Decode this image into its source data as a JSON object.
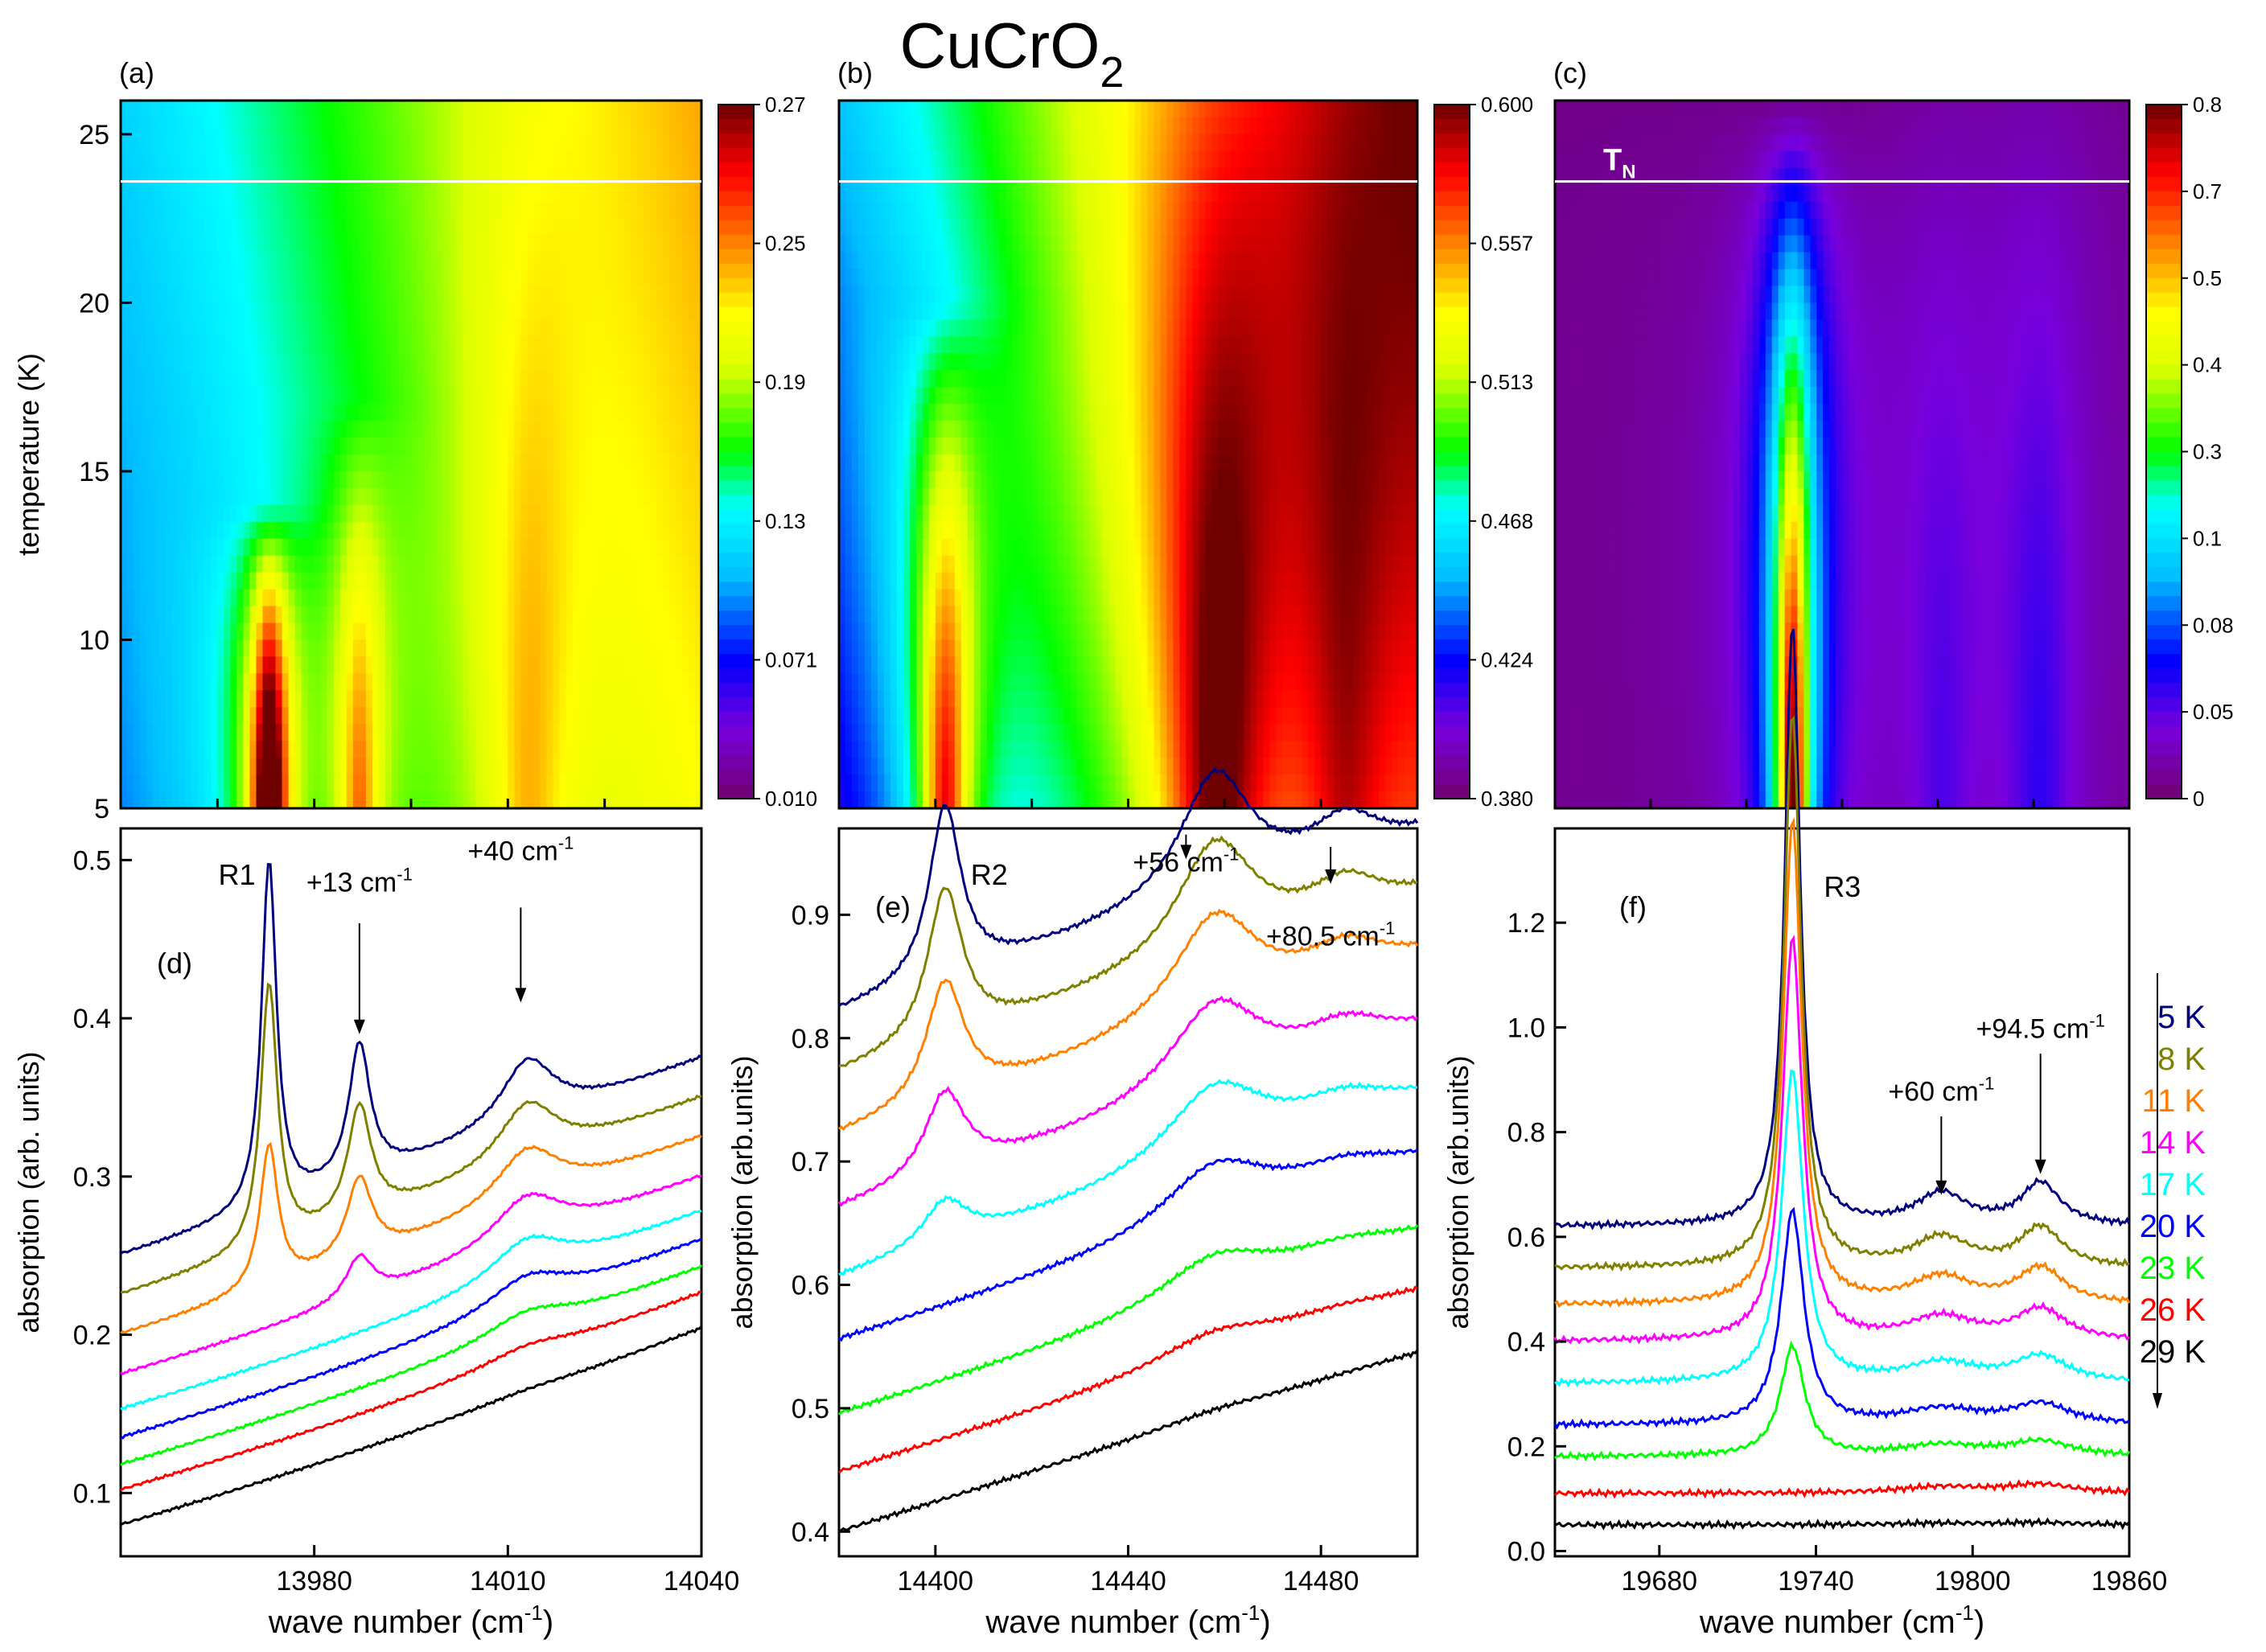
{
  "title": {
    "main": "CuCrO",
    "sub": "2"
  },
  "heatmaps": [
    {
      "panel": "(a)",
      "x_range": [
        13950,
        14040
      ],
      "y_range": [
        5,
        26
      ],
      "ylabel": "temperature (K)",
      "y_ticks": [
        "5",
        "10",
        "15",
        "20",
        "25"
      ],
      "colorbar_ticks": [
        "0.010",
        "0.071",
        "0.13",
        "0.19",
        "0.25",
        "0.27"
      ],
      "colorbar_range": [
        0.01,
        0.27
      ],
      "tn_temperature": 23.6,
      "peaks": [
        {
          "x": 13973,
          "width": 2.5,
          "amp": 0.22,
          "tmax": 14
        },
        {
          "x": 13987,
          "width": 3.0,
          "amp": 0.09,
          "tmax": 17
        },
        {
          "x": 14013,
          "width": 6.0,
          "amp": 0.05,
          "tmax": 30
        }
      ],
      "background": {
        "base": 0.08,
        "slope": 0.0012,
        "t_slope": 0.001
      }
    },
    {
      "panel": "(b)",
      "x_range": [
        14380,
        14500
      ],
      "y_range": [
        5,
        26
      ],
      "y_ticks": [],
      "colorbar_ticks": [
        "0.380",
        "0.424",
        "0.468",
        "0.513",
        "0.557",
        "0.600"
      ],
      "colorbar_range": [
        0.38,
        0.6
      ],
      "tn_temperature": 23.6,
      "peaks": [
        {
          "x": 14402,
          "width": 5.0,
          "amp": 0.14,
          "tmax": 20
        },
        {
          "x": 14458,
          "width": 10.0,
          "amp": 0.1,
          "tmax": 30
        },
        {
          "x": 14485,
          "width": 8.0,
          "amp": 0.04,
          "tmax": 30
        }
      ],
      "background": {
        "base": 0.41,
        "slope": 0.0012,
        "t_slope": 0.002
      }
    },
    {
      "panel": "(c)",
      "x_range": [
        19640,
        19860
      ],
      "y_range": [
        5,
        26
      ],
      "y_ticks": [],
      "colorbar_ticks": [
        "0",
        "0.05",
        "0.08",
        "0.1",
        "0.3",
        "0.4",
        "0.5",
        "0.7",
        "0.8"
      ],
      "colorbar_range": [
        0,
        0.8
      ],
      "tn_temperature": 23.6,
      "tn_label": "T",
      "tn_sub": "N",
      "peaks": [
        {
          "x": 19731,
          "width": 6.0,
          "amp": 0.8,
          "tmax": 26
        },
        {
          "x": 19788,
          "width": 12.0,
          "amp": 0.07,
          "tmax": 30
        },
        {
          "x": 19826,
          "width": 12.0,
          "amp": 0.1,
          "tmax": 30
        }
      ],
      "background": {
        "base": 0.02,
        "slope": 0.0,
        "t_slope": 0.0
      }
    }
  ],
  "spectra": [
    {
      "panel": "(d)",
      "line_label": "R1",
      "x_range": [
        13950,
        14040
      ],
      "y_range": [
        0.06,
        0.52
      ],
      "ylabel": "absorption (arb. units)",
      "xlabel": "wave number (cm",
      "xlabel_sup": "-1",
      "xlabel_end": ")",
      "x_ticks": [
        "13980",
        "14010",
        "14040"
      ],
      "y_ticks": [
        "0.1",
        "0.2",
        "0.3",
        "0.4",
        "0.5"
      ],
      "annotations": [
        {
          "text": "+13 cm",
          "sup": "-1",
          "x": 13987,
          "y": 0.48,
          "arrow_from": 0.46,
          "arrow_to": 0.39
        },
        {
          "text": "+40 cm",
          "sup": "-1",
          "x": 14012,
          "y": 0.5,
          "arrow_from": 0.47,
          "arrow_to": 0.41
        }
      ],
      "peaks": [
        {
          "x": 13973,
          "width": 1.4,
          "amp": 0.22,
          "tmax": 14
        },
        {
          "x": 13987,
          "width": 2.0,
          "amp": 0.085,
          "tmax": 17
        },
        {
          "x": 14013,
          "width": 5.0,
          "amp": 0.04,
          "tmax": 30
        }
      ],
      "background": {
        "base": 0.08,
        "slope": 0.0012,
        "curv": 2e-06,
        "noise": 0.001
      },
      "offsets": [
        0.17,
        0.145,
        0.12,
        0.095,
        0.073,
        0.055,
        0.038,
        0.022,
        0.0
      ]
    },
    {
      "panel": "(e)",
      "line_label": "R2",
      "x_range": [
        14380,
        14500
      ],
      "y_range": [
        0.38,
        0.97
      ],
      "ylabel": "absorption (arb.units)",
      "xlabel": "wave number (cm",
      "xlabel_sup": "-1",
      "xlabel_end": ")",
      "x_ticks": [
        "14400",
        "14440",
        "14480"
      ],
      "y_ticks": [
        "0.4",
        "0.5",
        "0.6",
        "0.7",
        "0.8",
        "0.9"
      ],
      "annotations": [
        {
          "text": "+56 cm",
          "sup": "-1",
          "x": 14452,
          "y": 0.935,
          "arrow_from": 0.965,
          "arrow_to": 0.945
        },
        {
          "text": "+80.5 cm",
          "sup": "-1",
          "x": 14482,
          "y": 0.875,
          "arrow_from": 0.955,
          "arrow_to": 0.925
        }
      ],
      "peaks": [
        {
          "x": 14402,
          "width": 4.0,
          "amp": 0.14,
          "tmax": 20
        },
        {
          "x": 14458,
          "width": 9.0,
          "amp": 0.1,
          "tmax": 30
        },
        {
          "x": 14485,
          "width": 8.0,
          "amp": 0.03,
          "tmax": 30
        }
      ],
      "background": {
        "base": 0.4,
        "slope": 0.0012,
        "curv": 0.0,
        "noise": 0.002
      },
      "offsets": [
        0.42,
        0.37,
        0.32,
        0.26,
        0.205,
        0.155,
        0.095,
        0.048,
        0.0
      ]
    },
    {
      "panel": "(f)",
      "line_label": "R3",
      "x_range": [
        19640,
        19860
      ],
      "y_range": [
        -0.01,
        1.38
      ],
      "ylabel": "absorption (arb.units)",
      "xlabel": "wave number (cm",
      "xlabel_sup": "-1",
      "xlabel_end": ")",
      "x_ticks": [
        "19680",
        "19740",
        "19800",
        "19860"
      ],
      "y_ticks": [
        "0.0",
        "0.2",
        "0.4",
        "0.6",
        "0.8",
        "1.0",
        "1.2"
      ],
      "annotations": [
        {
          "text": "+60 cm",
          "sup": "-1",
          "x": 19788,
          "y": 0.86,
          "arrow_from": 0.83,
          "arrow_to": 0.68
        },
        {
          "text": "+94.5 cm",
          "sup": "-1",
          "x": 19826,
          "y": 0.98,
          "arrow_from": 0.95,
          "arrow_to": 0.72
        }
      ],
      "peaks": [
        {
          "x": 19731,
          "width": 3.5,
          "amp": 1.15,
          "tmax": 26
        },
        {
          "x": 19788,
          "width": 12.0,
          "amp": 0.06,
          "tmax": 30
        },
        {
          "x": 19826,
          "width": 9.0,
          "amp": 0.08,
          "tmax": 30
        }
      ],
      "background": {
        "base": 0.02,
        "slope": 0.0,
        "curv": 0.0,
        "noise": 0.006
      },
      "offsets": [
        0.6,
        0.52,
        0.45,
        0.38,
        0.3,
        0.22,
        0.16,
        0.09,
        0.03
      ]
    }
  ],
  "legend": {
    "entries": [
      {
        "label": "5 K",
        "temp": 5,
        "color": "#00007f"
      },
      {
        "label": "8 K",
        "temp": 8,
        "color": "#7f7f00"
      },
      {
        "label": "11 K",
        "temp": 11,
        "color": "#ff7f00"
      },
      {
        "label": "14 K",
        "temp": 14,
        "color": "#ff00ff"
      },
      {
        "label": "17 K",
        "temp": 17,
        "color": "#00ffff"
      },
      {
        "label": "20 K",
        "temp": 20,
        "color": "#0000ff"
      },
      {
        "label": "23 K",
        "temp": 23,
        "color": "#00ff00"
      },
      {
        "label": "26 K",
        "temp": 26,
        "color": "#ff0000"
      },
      {
        "label": "29 K",
        "temp": 29,
        "color": "#000000"
      }
    ]
  },
  "chart_data": [
    {
      "type": "heatmap",
      "title": "(a)",
      "xlabel": "",
      "ylabel": "temperature (K)",
      "xlim": [
        13950,
        14040
      ],
      "ylim": [
        5,
        26
      ],
      "colorbar": [
        0.01,
        0.27
      ]
    },
    {
      "type": "heatmap",
      "title": "(b)",
      "xlabel": "",
      "ylabel": "",
      "xlim": [
        14380,
        14500
      ],
      "ylim": [
        5,
        26
      ],
      "colorbar": [
        0.38,
        0.6
      ]
    },
    {
      "type": "heatmap",
      "title": "(c)",
      "xlabel": "",
      "ylabel": "",
      "xlim": [
        19640,
        19860
      ],
      "ylim": [
        5,
        26
      ],
      "colorbar": [
        0,
        0.8
      ]
    },
    {
      "type": "line",
      "title": "(d)",
      "xlabel": "wave number (cm-1)",
      "ylabel": "absorption (arb. units)",
      "xlim": [
        13950,
        14040
      ],
      "ylim": [
        0.06,
        0.52
      ],
      "series": [
        {
          "name": "5 K"
        },
        {
          "name": "8 K"
        },
        {
          "name": "11 K"
        },
        {
          "name": "14 K"
        },
        {
          "name": "17 K"
        },
        {
          "name": "20 K"
        },
        {
          "name": "23 K"
        },
        {
          "name": "26 K"
        },
        {
          "name": "29 K"
        }
      ]
    },
    {
      "type": "line",
      "title": "(e)",
      "xlabel": "wave number (cm-1)",
      "ylabel": "absorption (arb.units)",
      "xlim": [
        14380,
        14500
      ],
      "ylim": [
        0.38,
        0.97
      ],
      "series": [
        {
          "name": "5 K"
        },
        {
          "name": "8 K"
        },
        {
          "name": "11 K"
        },
        {
          "name": "14 K"
        },
        {
          "name": "17 K"
        },
        {
          "name": "20 K"
        },
        {
          "name": "23 K"
        },
        {
          "name": "26 K"
        },
        {
          "name": "29 K"
        }
      ]
    },
    {
      "type": "line",
      "title": "(f)",
      "xlabel": "wave number (cm-1)",
      "ylabel": "absorption (arb.units)",
      "xlim": [
        19640,
        19860
      ],
      "ylim": [
        -0.01,
        1.38
      ],
      "series": [
        {
          "name": "5 K"
        },
        {
          "name": "8 K"
        },
        {
          "name": "11 K"
        },
        {
          "name": "14 K"
        },
        {
          "name": "17 K"
        },
        {
          "name": "20 K"
        },
        {
          "name": "23 K"
        },
        {
          "name": "26 K"
        },
        {
          "name": "29 K"
        }
      ]
    }
  ]
}
